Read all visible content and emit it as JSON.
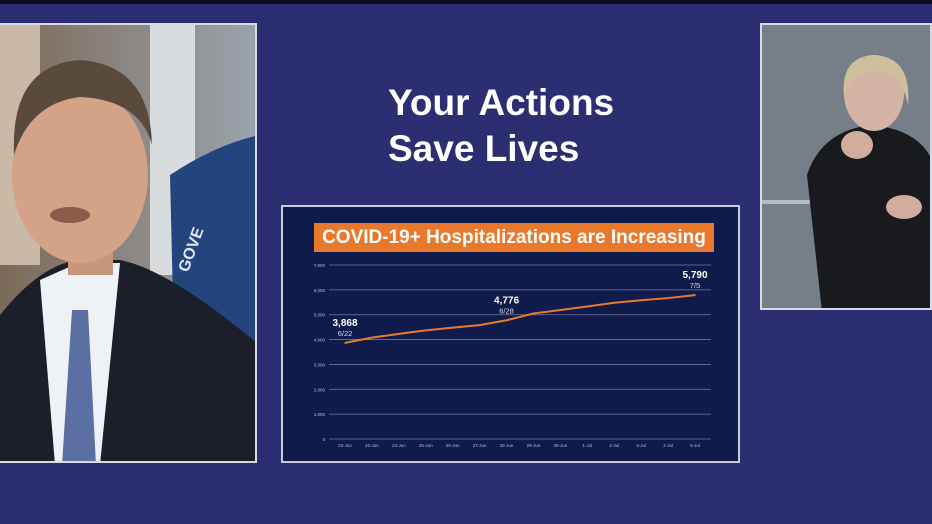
{
  "headline": {
    "line1": "Your Actions",
    "line2": "Save Lives"
  },
  "colors": {
    "background": "#2b2f72",
    "accent": "#e8792c",
    "chart_bg": "#0f1c4b",
    "line": "#e8792c"
  },
  "chart_data": {
    "type": "line",
    "title": "COVID-19+ Hospitalizations are Increasing",
    "xlabel": "",
    "ylabel": "",
    "ylim": [
      0,
      7000
    ],
    "yticks": [
      "0",
      "1,000",
      "2,000",
      "3,000",
      "4,000",
      "5,000",
      "6,000",
      "7,000"
    ],
    "categories": [
      "22-Jun",
      "23-Jun",
      "24-Jun",
      "25-Jun",
      "26-Jun",
      "27-Jun",
      "28-Jun",
      "29-Jun",
      "30-Jun",
      "1-Jul",
      "2-Jul",
      "3-Jul",
      "4-Jul",
      "5-Jul"
    ],
    "series": [
      {
        "values": [
          3868,
          4080,
          4230,
          4370,
          4480,
          4580,
          4776,
          5050,
          5190,
          5330,
          5480,
          5580,
          5670,
          5790
        ]
      }
    ],
    "grid": true,
    "annotations": [
      {
        "index": 0,
        "value": "3,868",
        "date": "6/22"
      },
      {
        "index": 6,
        "value": "4,776",
        "date": "6/28"
      },
      {
        "index": 13,
        "value": "5,790",
        "date": "7/5"
      }
    ]
  }
}
